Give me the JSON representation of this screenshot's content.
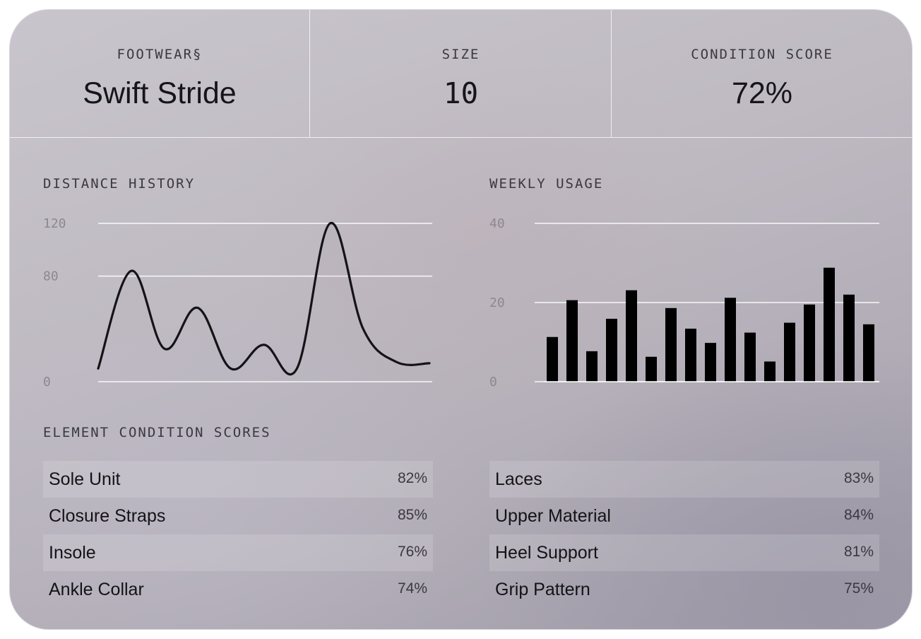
{
  "header": {
    "footwear": {
      "label": "FOOTWEAR§",
      "value": "Swift Stride"
    },
    "size": {
      "label": "SIZE",
      "value": "10"
    },
    "condition": {
      "label": "CONDITION SCORE",
      "value": "72%"
    }
  },
  "distance_section": {
    "title": "DISTANCE HISTORY"
  },
  "weekly_section": {
    "title": "WEEKLY USAGE"
  },
  "elements_section": {
    "title": "ELEMENT CONDITION SCORES"
  },
  "chart_data": [
    {
      "type": "line",
      "ylim": [
        0,
        120
      ],
      "yticks": [
        0,
        80,
        120
      ],
      "ytick_labels": [
        "0",
        "80",
        "120"
      ],
      "grid": true,
      "series": [
        {
          "x": [
            0,
            10,
            20,
            30,
            40,
            50,
            60,
            70,
            80,
            90,
            100
          ],
          "values": [
            10,
            84,
            25,
            56,
            10,
            28,
            10,
            120,
            40,
            15,
            14
          ]
        }
      ]
    },
    {
      "type": "bar",
      "ylim": [
        0,
        40
      ],
      "yticks": [
        0,
        20,
        40
      ],
      "ytick_labels": [
        "0",
        "20",
        "40"
      ],
      "grid": true,
      "values": [
        11.3,
        20.6,
        7.7,
        15.9,
        23.1,
        6.3,
        18.6,
        13.4,
        9.8,
        21.2,
        12.4,
        5.1,
        14.9,
        19.5,
        28.8,
        22.0,
        14.5
      ]
    }
  ],
  "elements": {
    "left": [
      {
        "label": "Sole Unit",
        "value": "82%"
      },
      {
        "label": "Closure Straps",
        "value": "85%"
      },
      {
        "label": "Insole",
        "value": "76%"
      },
      {
        "label": "Ankle Collar",
        "value": "74%"
      }
    ],
    "right": [
      {
        "label": "Laces",
        "value": "83%"
      },
      {
        "label": "Upper Material",
        "value": "84%"
      },
      {
        "label": "Heel Support",
        "value": "81%"
      },
      {
        "label": "Grip Pattern",
        "value": "75%"
      }
    ]
  }
}
